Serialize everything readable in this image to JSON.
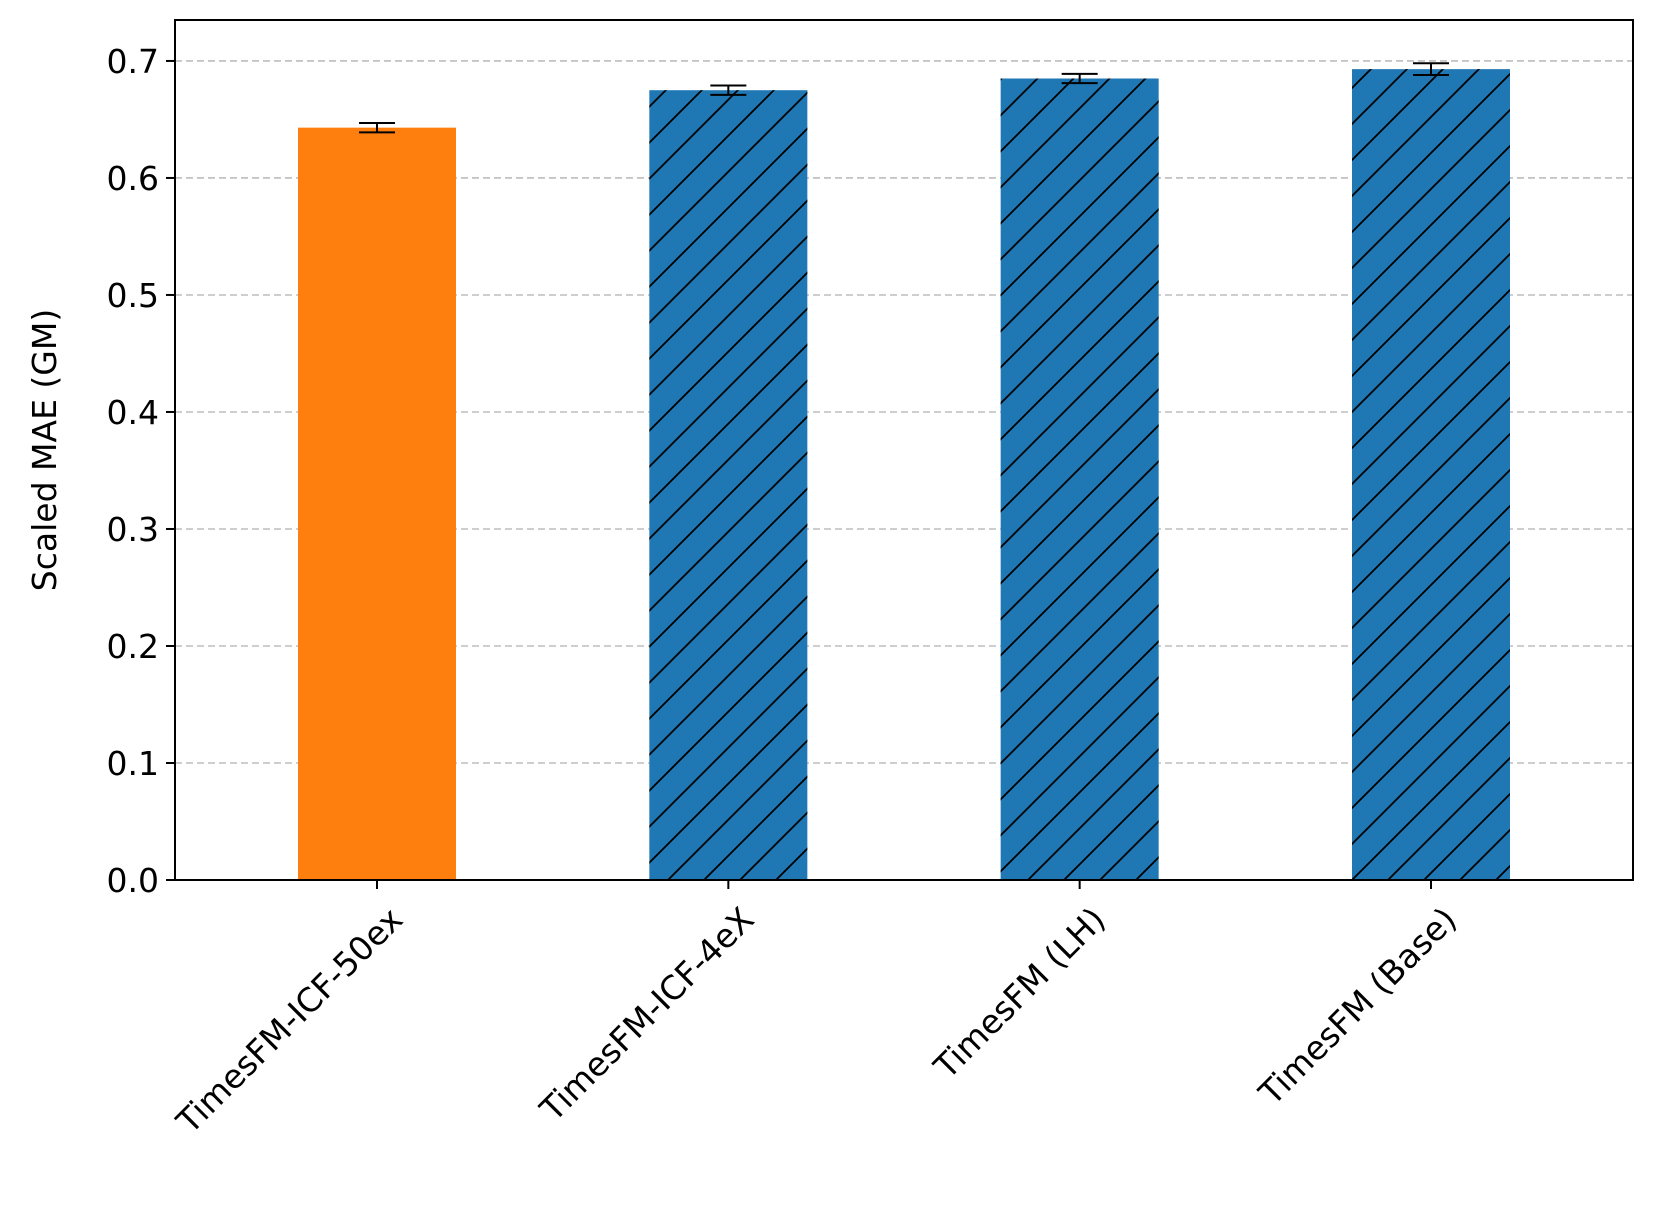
{
  "chart_data": {
    "type": "bar",
    "title": "",
    "xlabel": "",
    "ylabel": "Scaled MAE (GM)",
    "categories": [
      "TimesFM-ICF-50ex",
      "TimesFM-ICF-4eX",
      "TimesFM (LH)",
      "TimesFM (Base)"
    ],
    "values": [
      0.643,
      0.675,
      0.685,
      0.693
    ],
    "errors": [
      0.004,
      0.004,
      0.004,
      0.005
    ],
    "hatched": [
      false,
      true,
      true,
      true
    ],
    "colors": [
      "#ff7f0e",
      "#1f77b4",
      "#1f77b4",
      "#1f77b4"
    ],
    "ylim": [
      0.0,
      0.735
    ],
    "yticks": [
      0.0,
      0.1,
      0.2,
      0.3,
      0.4,
      0.5,
      0.6,
      0.7
    ],
    "ytick_labels": [
      "0.0",
      "0.1",
      "0.2",
      "0.3",
      "0.4",
      "0.5",
      "0.6",
      "0.7"
    ],
    "grid": "y-dashed",
    "legend": "none"
  }
}
